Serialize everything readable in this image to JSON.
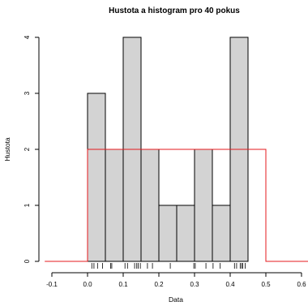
{
  "chart_data": {
    "type": "bar",
    "title": "Hustota a histogram pro 40 pokus",
    "xlabel": "Data",
    "ylabel": "Hustota",
    "xlim": [
      -0.1,
      0.6
    ],
    "ylim": [
      0,
      4
    ],
    "x_ticks": [
      "-0.1",
      "0.0",
      "0.1",
      "0.2",
      "0.3",
      "0.4",
      "0.5",
      "0.6"
    ],
    "y_ticks": [
      "0",
      "1",
      "2",
      "3",
      "4"
    ],
    "grid": false,
    "bins": [
      {
        "start": 0.0,
        "end": 0.05,
        "value": 3
      },
      {
        "start": 0.05,
        "end": 0.1,
        "value": 2
      },
      {
        "start": 0.1,
        "end": 0.15,
        "value": 4
      },
      {
        "start": 0.15,
        "end": 0.2,
        "value": 2
      },
      {
        "start": 0.2,
        "end": 0.25,
        "value": 1
      },
      {
        "start": 0.25,
        "end": 0.3,
        "value": 1
      },
      {
        "start": 0.3,
        "end": 0.35,
        "value": 2
      },
      {
        "start": 0.35,
        "end": 0.4,
        "value": 1
      },
      {
        "start": 0.4,
        "end": 0.45,
        "value": 4
      }
    ],
    "density_line": {
      "color": "#e41a1c",
      "points": [
        [
          -0.12,
          0
        ],
        [
          0.0,
          0
        ],
        [
          0.0,
          2
        ],
        [
          0.5,
          2
        ],
        [
          0.5,
          0
        ],
        [
          0.62,
          0
        ]
      ]
    },
    "rug": [
      0.012,
      0.018,
      0.028,
      0.042,
      0.065,
      0.068,
      0.105,
      0.112,
      0.132,
      0.138,
      0.142,
      0.148,
      0.168,
      0.182,
      0.232,
      0.298,
      0.302,
      0.332,
      0.352,
      0.372,
      0.412,
      0.418,
      0.428,
      0.432,
      0.435,
      0.442
    ],
    "colors": {
      "bar_fill": "#d3d3d3",
      "bar_stroke": "#000000",
      "density": "#e41a1c"
    }
  }
}
